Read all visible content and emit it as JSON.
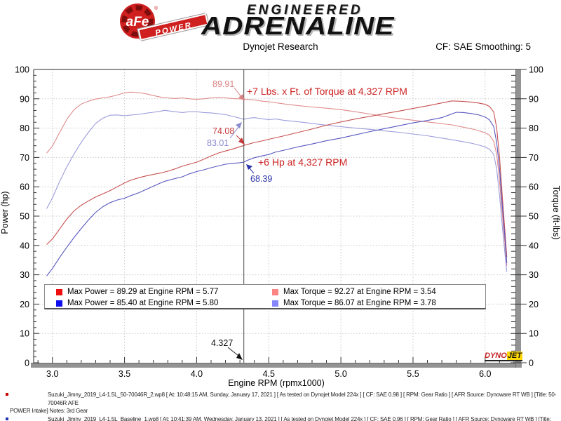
{
  "header": {
    "afe_badge": "aFe",
    "afe_power": "POWER",
    "engineered": "ENGINEERED",
    "adrenaline": "ADRENALINE",
    "title": "Dynojet Research",
    "cf_label": "CF: SAE Smoothing: 5"
  },
  "chart_data": {
    "type": "line",
    "title": "Dynojet Research",
    "xlabel": "Engine RPM (rpmx1000)",
    "ylabel_left": "Power (hp)",
    "ylabel_right": "Torque (ft-lbs)",
    "xlim": [
      2.87,
      6.21
    ],
    "ylim": [
      0,
      100
    ],
    "x_ticks": [
      3.0,
      3.5,
      4.0,
      4.5,
      5.0,
      5.5,
      6.0
    ],
    "x_minor_step": 0.1,
    "y_major_step": 10,
    "y_minor_step": 2,
    "grid": "dotted",
    "legend_position": "bottom-inside",
    "cursor_rpm": 4.327,
    "series": [
      {
        "name": "torque-afe",
        "legend": "Max Torque = 92.27 at Engine RPM = 3.54",
        "color": "#e08c8c",
        "points": [
          [
            2.96,
            71.5
          ],
          [
            3.0,
            73.8
          ],
          [
            3.05,
            78.5
          ],
          [
            3.1,
            83.0
          ],
          [
            3.15,
            86.3
          ],
          [
            3.2,
            88.2
          ],
          [
            3.25,
            89.2
          ],
          [
            3.3,
            89.9
          ],
          [
            3.35,
            90.3
          ],
          [
            3.4,
            90.7
          ],
          [
            3.45,
            91.3
          ],
          [
            3.5,
            92.0
          ],
          [
            3.54,
            92.27
          ],
          [
            3.6,
            92.1
          ],
          [
            3.65,
            91.7
          ],
          [
            3.7,
            91.1
          ],
          [
            3.75,
            90.6
          ],
          [
            3.8,
            90.3
          ],
          [
            3.85,
            90.1
          ],
          [
            3.9,
            90.3
          ],
          [
            3.95,
            90.0
          ],
          [
            4.0,
            89.8
          ],
          [
            4.05,
            90.0
          ],
          [
            4.1,
            90.3
          ],
          [
            4.15,
            90.5
          ],
          [
            4.2,
            90.3
          ],
          [
            4.25,
            90.1
          ],
          [
            4.327,
            89.91
          ],
          [
            4.4,
            89.6
          ],
          [
            4.45,
            89.2
          ],
          [
            4.5,
            89.0
          ],
          [
            4.6,
            88.3
          ],
          [
            4.7,
            87.7
          ],
          [
            4.8,
            87.2
          ],
          [
            4.9,
            86.8
          ],
          [
            5.0,
            86.3
          ],
          [
            5.1,
            85.6
          ],
          [
            5.2,
            84.8
          ],
          [
            5.3,
            84.0
          ],
          [
            5.4,
            83.3
          ],
          [
            5.5,
            82.7
          ],
          [
            5.6,
            82.1
          ],
          [
            5.7,
            81.5
          ],
          [
            5.77,
            81.1
          ],
          [
            5.85,
            80.3
          ],
          [
            5.9,
            79.8
          ],
          [
            5.95,
            79.2
          ],
          [
            6.0,
            78.4
          ],
          [
            6.03,
            77.6
          ],
          [
            6.06,
            75.5
          ],
          [
            6.08,
            71.0
          ],
          [
            6.1,
            62.0
          ],
          [
            6.12,
            50.0
          ],
          [
            6.14,
            39.0
          ],
          [
            6.15,
            33.0
          ]
        ]
      },
      {
        "name": "torque-baseline",
        "legend": "Max Torque = 86.07 at Engine RPM = 3.78",
        "color": "#9c9cdc",
        "points": [
          [
            2.96,
            52.5
          ],
          [
            3.0,
            56.2
          ],
          [
            3.05,
            61.8
          ],
          [
            3.1,
            66.8
          ],
          [
            3.15,
            71.2
          ],
          [
            3.2,
            75.2
          ],
          [
            3.25,
            78.6
          ],
          [
            3.3,
            81.6
          ],
          [
            3.35,
            83.4
          ],
          [
            3.4,
            84.4
          ],
          [
            3.45,
            84.5
          ],
          [
            3.5,
            84.2
          ],
          [
            3.55,
            84.5
          ],
          [
            3.6,
            84.7
          ],
          [
            3.65,
            85.1
          ],
          [
            3.7,
            85.4
          ],
          [
            3.75,
            85.8
          ],
          [
            3.78,
            86.07
          ],
          [
            3.82,
            85.8
          ],
          [
            3.85,
            85.6
          ],
          [
            3.9,
            85.3
          ],
          [
            3.95,
            85.6
          ],
          [
            4.0,
            85.6
          ],
          [
            4.05,
            85.3
          ],
          [
            4.1,
            85.2
          ],
          [
            4.15,
            84.9
          ],
          [
            4.2,
            84.6
          ],
          [
            4.25,
            84.0
          ],
          [
            4.3,
            83.4
          ],
          [
            4.327,
            83.01
          ],
          [
            4.35,
            83.3
          ],
          [
            4.4,
            83.6
          ],
          [
            4.45,
            83.2
          ],
          [
            4.5,
            82.9
          ],
          [
            4.55,
            83.1
          ],
          [
            4.6,
            82.7
          ],
          [
            4.7,
            82.2
          ],
          [
            4.8,
            81.6
          ],
          [
            4.9,
            81.0
          ],
          [
            5.0,
            80.5
          ],
          [
            5.1,
            80.0
          ],
          [
            5.2,
            79.6
          ],
          [
            5.3,
            79.1
          ],
          [
            5.4,
            78.6
          ],
          [
            5.5,
            78.0
          ],
          [
            5.6,
            77.4
          ],
          [
            5.7,
            76.6
          ],
          [
            5.8,
            75.8
          ],
          [
            5.9,
            74.9
          ],
          [
            5.95,
            74.3
          ],
          [
            6.0,
            73.6
          ],
          [
            6.03,
            72.8
          ],
          [
            6.06,
            71.0
          ],
          [
            6.08,
            66.0
          ],
          [
            6.1,
            57.0
          ],
          [
            6.12,
            46.0
          ],
          [
            6.14,
            36.0
          ],
          [
            6.15,
            31.0
          ]
        ]
      },
      {
        "name": "power-afe",
        "legend": "Max Power = 89.29 at Engine RPM = 5.77",
        "color": "#c75050",
        "points": [
          [
            2.96,
            40.3
          ],
          [
            3.0,
            42.2
          ],
          [
            3.05,
            45.6
          ],
          [
            3.1,
            49.0
          ],
          [
            3.15,
            51.8
          ],
          [
            3.2,
            53.7
          ],
          [
            3.25,
            55.2
          ],
          [
            3.3,
            56.5
          ],
          [
            3.35,
            57.6
          ],
          [
            3.4,
            58.7
          ],
          [
            3.45,
            60.0
          ],
          [
            3.5,
            61.3
          ],
          [
            3.54,
            62.2
          ],
          [
            3.6,
            63.1
          ],
          [
            3.65,
            63.7
          ],
          [
            3.7,
            64.2
          ],
          [
            3.75,
            64.7
          ],
          [
            3.8,
            65.3
          ],
          [
            3.85,
            66.1
          ],
          [
            3.9,
            67.0
          ],
          [
            3.95,
            67.7
          ],
          [
            4.0,
            68.4
          ],
          [
            4.05,
            69.4
          ],
          [
            4.1,
            70.5
          ],
          [
            4.15,
            71.5
          ],
          [
            4.2,
            72.2
          ],
          [
            4.25,
            72.9
          ],
          [
            4.327,
            74.08
          ],
          [
            4.4,
            75.1
          ],
          [
            4.45,
            75.6
          ],
          [
            4.5,
            76.2
          ],
          [
            4.6,
            77.3
          ],
          [
            4.7,
            78.5
          ],
          [
            4.8,
            79.7
          ],
          [
            4.9,
            81.0
          ],
          [
            5.0,
            82.1
          ],
          [
            5.1,
            83.1
          ],
          [
            5.2,
            84.0
          ],
          [
            5.3,
            84.9
          ],
          [
            5.4,
            85.8
          ],
          [
            5.5,
            86.7
          ],
          [
            5.6,
            87.6
          ],
          [
            5.7,
            88.6
          ],
          [
            5.77,
            89.29
          ],
          [
            5.85,
            89.1
          ],
          [
            5.9,
            88.9
          ],
          [
            5.95,
            88.6
          ],
          [
            6.0,
            88.1
          ],
          [
            6.03,
            87.4
          ],
          [
            6.06,
            85.5
          ],
          [
            6.08,
            80.0
          ],
          [
            6.1,
            70.0
          ],
          [
            6.12,
            56.0
          ],
          [
            6.14,
            43.0
          ],
          [
            6.15,
            36.0
          ]
        ]
      },
      {
        "name": "power-baseline",
        "legend": "Max Power = 85.40 at Engine RPM = 5.80",
        "color": "#5858c0",
        "points": [
          [
            2.96,
            29.6
          ],
          [
            3.0,
            32.1
          ],
          [
            3.05,
            35.9
          ],
          [
            3.1,
            39.4
          ],
          [
            3.15,
            42.7
          ],
          [
            3.2,
            45.8
          ],
          [
            3.25,
            48.7
          ],
          [
            3.3,
            51.3
          ],
          [
            3.35,
            53.2
          ],
          [
            3.4,
            54.6
          ],
          [
            3.45,
            55.5
          ],
          [
            3.5,
            56.1
          ],
          [
            3.55,
            57.1
          ],
          [
            3.6,
            58.0
          ],
          [
            3.65,
            59.1
          ],
          [
            3.7,
            60.2
          ],
          [
            3.75,
            61.3
          ],
          [
            3.78,
            61.9
          ],
          [
            3.85,
            62.8
          ],
          [
            3.9,
            63.4
          ],
          [
            3.95,
            64.4
          ],
          [
            4.0,
            65.2
          ],
          [
            4.05,
            65.8
          ],
          [
            4.1,
            66.5
          ],
          [
            4.15,
            67.1
          ],
          [
            4.2,
            67.7
          ],
          [
            4.25,
            68.0
          ],
          [
            4.3,
            68.2
          ],
          [
            4.327,
            68.39
          ],
          [
            4.35,
            69.0
          ],
          [
            4.4,
            69.9
          ],
          [
            4.45,
            70.5
          ],
          [
            4.5,
            71.0
          ],
          [
            4.55,
            71.9
          ],
          [
            4.6,
            72.4
          ],
          [
            4.7,
            73.6
          ],
          [
            4.8,
            74.6
          ],
          [
            4.9,
            75.7
          ],
          [
            5.0,
            76.6
          ],
          [
            5.1,
            77.7
          ],
          [
            5.2,
            78.8
          ],
          [
            5.3,
            79.8
          ],
          [
            5.4,
            80.8
          ],
          [
            5.5,
            81.8
          ],
          [
            5.6,
            82.6
          ],
          [
            5.7,
            83.6
          ],
          [
            5.75,
            84.5
          ],
          [
            5.8,
            85.4
          ],
          [
            5.85,
            85.3
          ],
          [
            5.9,
            85.0
          ],
          [
            5.95,
            84.6
          ],
          [
            6.0,
            83.8
          ],
          [
            6.03,
            82.8
          ],
          [
            6.06,
            80.5
          ],
          [
            6.08,
            75.0
          ],
          [
            6.1,
            66.0
          ],
          [
            6.12,
            53.0
          ],
          [
            6.14,
            41.0
          ],
          [
            6.15,
            34.0
          ]
        ]
      }
    ],
    "annotations": {
      "torque_gain": "+7 Lbs. x Ft. of Torque at 4,327 RPM",
      "power_gain": "+6 Hp at 4,327 RPM",
      "cursor_torque_afe": "89.91",
      "cursor_power_afe": "74.08",
      "cursor_torque_baseline": "83.01",
      "cursor_power_baseline": "68.39",
      "cursor_label": "4.327"
    }
  },
  "legend": {
    "items": [
      {
        "label": "Max Power = 89.29 at Engine RPM = 5.77",
        "color": "#ee0e0e"
      },
      {
        "label": "Max Torque = 92.27 at Engine RPM = 3.54",
        "color": "#ff8585"
      },
      {
        "label": "Max Power = 85.40 at Engine RPM = 5.80",
        "color": "#0e0eee"
      },
      {
        "label": "Max Torque = 86.07 at Engine RPM = 3.78",
        "color": "#8585ff"
      }
    ]
  },
  "watermark": {
    "dyno": "DYNO",
    "jet": "JET"
  },
  "footnotes": [
    {
      "bullet_color": "#cc0000",
      "rows": [
        "Suzuki_Jimny_2019_L4-1.5L_50-70046R_2.wp8 [ At: 10:48:15 AM, Sunday, January 17, 2021 ] [ As tested on Dynojet Model 224x ] [ CF: SAE 0.98 ] [ RPM: Gear Ratio ] [ AFR Source: Dynoware RT WB ] [Title: 50-70046R AFE",
        "POWER Intake]  Notes: 3rd Gear"
      ]
    },
    {
      "bullet_color": "#2233bb",
      "rows": [
        "Suzuki_Jimny_2019_L4-1.5L_Baseline_1.wp8 [ At: 10:41:39 AM, Wednesday, January 13, 2021 ] [ As tested on Dynojet Model 224x ] [ CF: SAE 0.96 ] [ RPM: Gear Ratio ] [ AFR Source: Dynoware RT WB ] [Title: Baseline]  Notes:"
      ]
    }
  ]
}
